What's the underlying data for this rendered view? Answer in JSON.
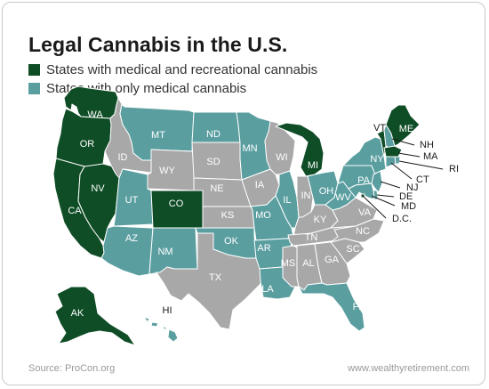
{
  "title": "Legal Cannabis in the U.S.",
  "colors": {
    "recreational": "#0f4d26",
    "medical": "#5a9ea0",
    "none": "#a8a8a9",
    "border": "#ffffff"
  },
  "legend": [
    {
      "label": "States with medical and recreational cannabis",
      "status": "recreational"
    },
    {
      "label": "States with only medical cannabis",
      "status": "medical"
    }
  ],
  "states": [
    {
      "abbr": "WA",
      "status": "recreational"
    },
    {
      "abbr": "OR",
      "status": "recreational"
    },
    {
      "abbr": "CA",
      "status": "recreational"
    },
    {
      "abbr": "NV",
      "status": "recreational"
    },
    {
      "abbr": "ID",
      "status": "none"
    },
    {
      "abbr": "MT",
      "status": "medical"
    },
    {
      "abbr": "WY",
      "status": "none"
    },
    {
      "abbr": "UT",
      "status": "medical"
    },
    {
      "abbr": "CO",
      "status": "recreational"
    },
    {
      "abbr": "AZ",
      "status": "medical"
    },
    {
      "abbr": "NM",
      "status": "medical"
    },
    {
      "abbr": "ND",
      "status": "medical"
    },
    {
      "abbr": "SD",
      "status": "none"
    },
    {
      "abbr": "NE",
      "status": "none"
    },
    {
      "abbr": "KS",
      "status": "none"
    },
    {
      "abbr": "OK",
      "status": "medical"
    },
    {
      "abbr": "TX",
      "status": "none"
    },
    {
      "abbr": "MN",
      "status": "medical"
    },
    {
      "abbr": "IA",
      "status": "none"
    },
    {
      "abbr": "MO",
      "status": "medical"
    },
    {
      "abbr": "AR",
      "status": "medical"
    },
    {
      "abbr": "LA",
      "status": "medical"
    },
    {
      "abbr": "WI",
      "status": "none"
    },
    {
      "abbr": "IL",
      "status": "medical"
    },
    {
      "abbr": "MI",
      "status": "recreational"
    },
    {
      "abbr": "IN",
      "status": "none"
    },
    {
      "abbr": "OH",
      "status": "medical"
    },
    {
      "abbr": "KY",
      "status": "none"
    },
    {
      "abbr": "TN",
      "status": "none"
    },
    {
      "abbr": "MS",
      "status": "none"
    },
    {
      "abbr": "AL",
      "status": "none"
    },
    {
      "abbr": "GA",
      "status": "none"
    },
    {
      "abbr": "FL",
      "status": "medical"
    },
    {
      "abbr": "SC",
      "status": "none"
    },
    {
      "abbr": "NC",
      "status": "none"
    },
    {
      "abbr": "VA",
      "status": "none"
    },
    {
      "abbr": "WV",
      "status": "medical"
    },
    {
      "abbr": "PA",
      "status": "medical"
    },
    {
      "abbr": "NY",
      "status": "medical"
    },
    {
      "abbr": "VT",
      "status": "recreational"
    },
    {
      "abbr": "NH",
      "status": "medical"
    },
    {
      "abbr": "ME",
      "status": "recreational"
    },
    {
      "abbr": "MA",
      "status": "recreational"
    },
    {
      "abbr": "RI",
      "status": "medical"
    },
    {
      "abbr": "CT",
      "status": "medical"
    },
    {
      "abbr": "NJ",
      "status": "medical"
    },
    {
      "abbr": "DE",
      "status": "medical"
    },
    {
      "abbr": "MD",
      "status": "medical"
    },
    {
      "abbr": "DC",
      "label": "D.C.",
      "status": "recreational"
    },
    {
      "abbr": "AK",
      "status": "recreational"
    },
    {
      "abbr": "HI",
      "status": "medical"
    }
  ],
  "source": "Source: ProCon.org",
  "website": "www.wealthyretirement.com"
}
